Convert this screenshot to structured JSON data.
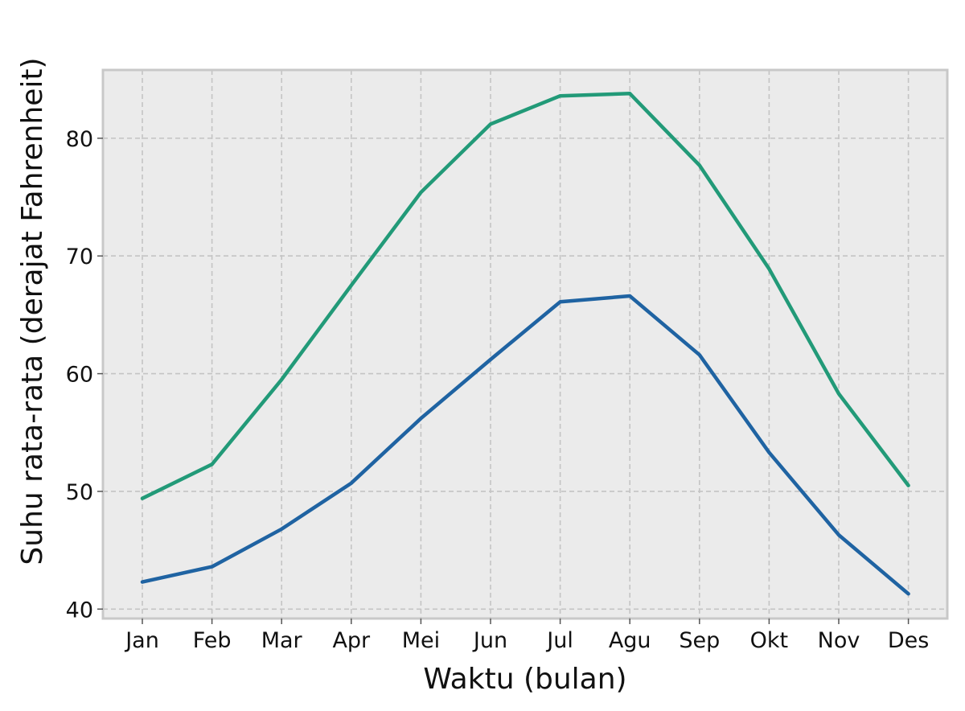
{
  "chart_data": {
    "type": "line",
    "title": "",
    "xlabel": "Waktu (bulan)",
    "ylabel": "Suhu rata-rata (derajat Fahrenheit)",
    "categories": [
      "Jan",
      "Feb",
      "Mar",
      "Apr",
      "Mei",
      "Jun",
      "Jul",
      "Agu",
      "Sep",
      "Okt",
      "Nov",
      "Des"
    ],
    "y_ticks": [
      40,
      50,
      60,
      70,
      80
    ],
    "ylim": [
      39.2,
      85.8
    ],
    "grid": true,
    "legend": "none",
    "series": [
      {
        "color": "#229a78",
        "values": [
          49.4,
          52.3,
          59.5,
          67.5,
          75.4,
          81.2,
          83.6,
          83.8,
          77.7,
          68.9,
          58.3,
          50.5
        ]
      },
      {
        "color": "#1f63a2",
        "values": [
          42.3,
          43.6,
          46.8,
          50.7,
          56.2,
          61.2,
          66.1,
          66.6,
          61.6,
          53.3,
          46.3,
          41.3
        ]
      }
    ],
    "background": "#ebebeb",
    "grid_color": "#c4c4c4",
    "spine_color": "#c8c8c8"
  }
}
